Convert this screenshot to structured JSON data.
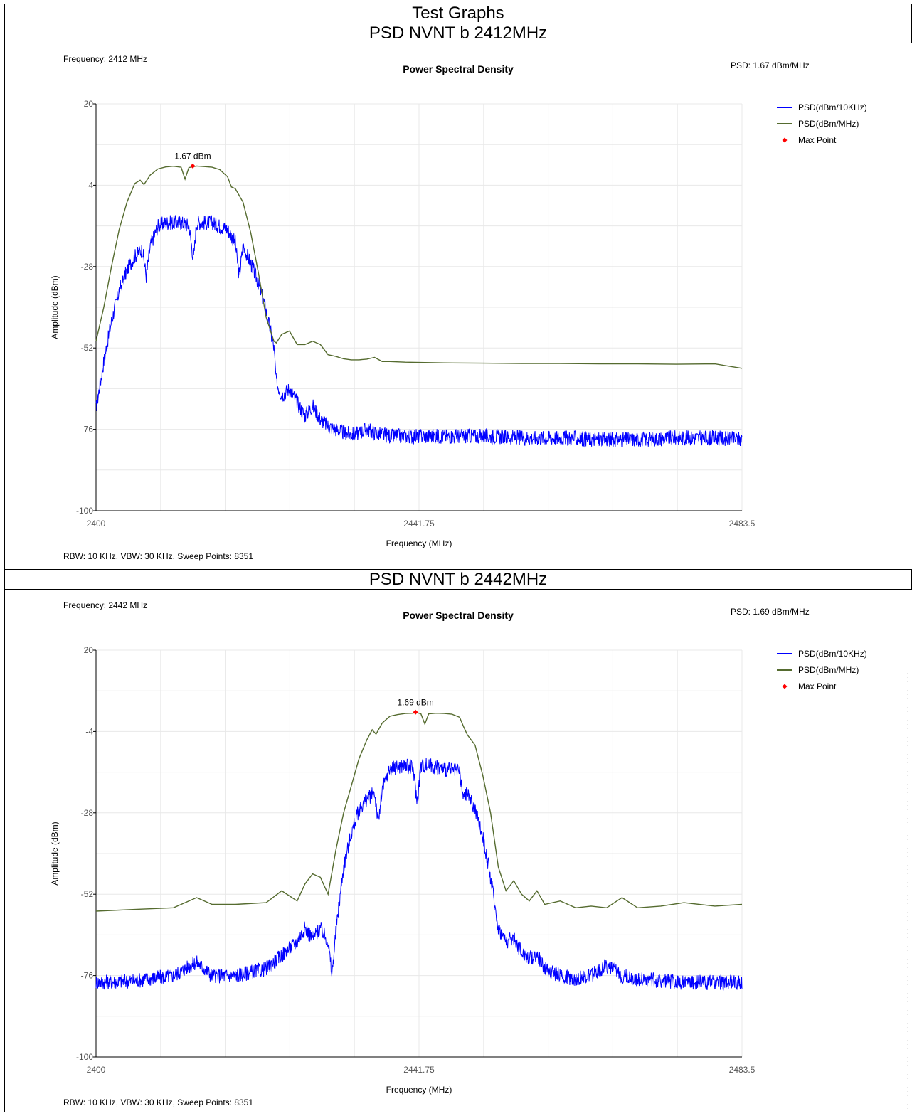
{
  "report_title": "Test Graphs",
  "graphs": [
    {
      "heading": "PSD NVNT b 2412MHz",
      "chart_title": "Power Spectral Density",
      "frequency_label": "Frequency: 2412 MHz",
      "psd_label": "PSD: 1.67 dBm/MHz",
      "footer": "RBW: 10 KHz,  VBW: 30 KHz,  Sweep Points: 8351",
      "max_label": "1.67 dBm"
    },
    {
      "heading": "PSD NVNT b 2442MHz",
      "chart_title": "Power Spectral Density",
      "frequency_label": "Frequency: 2442 MHz",
      "psd_label": "PSD: 1.69 dBm/MHz",
      "footer": "RBW: 10 KHz,  VBW: 30 KHz,  Sweep Points: 8351",
      "max_label": "1.69 dBm"
    }
  ],
  "colors": {
    "psd_10khz": "#0000ff",
    "psd_mhz": "#556b2f",
    "max_point": "#ff0000",
    "grid": "#e8e8e8"
  },
  "chart_data": [
    {
      "type": "line",
      "title": "Power Spectral Density",
      "xlabel": "Frequency (MHz)",
      "ylabel": "Amplitude (dBm)",
      "xlim": [
        2400,
        2483.5
      ],
      "ylim": [
        -100,
        20
      ],
      "x_ticks": [
        "2400",
        "2441.75",
        "2483.5"
      ],
      "y_ticks": [
        "20",
        "-4",
        "-28",
        "-52",
        "-76",
        "-100"
      ],
      "legend": [
        "PSD(dBm/10KHz)",
        "PSD(dBm/MHz)",
        "Max Point"
      ],
      "legend_position": "top-right",
      "grid": true,
      "max_point": {
        "x": 2412.5,
        "y": 1.67,
        "label": "1.67 dBm"
      },
      "series": [
        {
          "name": "PSD(dBm/MHz)",
          "x": [
            2400,
            2401,
            2402,
            2403,
            2404,
            2405,
            2405.7,
            2406.2,
            2407,
            2408,
            2409,
            2410,
            2411,
            2411.5,
            2412,
            2413,
            2414,
            2415,
            2416,
            2417,
            2417.5,
            2418,
            2419,
            2420,
            2421,
            2422,
            2423,
            2423.3,
            2424,
            2425,
            2426,
            2427,
            2428,
            2429,
            2430,
            2431,
            2432,
            2433,
            2434,
            2435,
            2436,
            2437,
            2438,
            2440,
            2445,
            2450,
            2455,
            2460,
            2465,
            2470,
            2475,
            2480,
            2483.5
          ],
          "y": [
            -50,
            -40,
            -28,
            -17,
            -9,
            -3.5,
            -2.5,
            -3.8,
            -1,
            0.8,
            1.4,
            1.6,
            1.3,
            -2.2,
            1.2,
            1.67,
            1.5,
            1.3,
            0.6,
            -1.5,
            -4.5,
            -5,
            -9,
            -18,
            -30,
            -43,
            -50,
            -50.5,
            -48,
            -47,
            -51,
            -51,
            -50,
            -51,
            -54,
            -54.5,
            -55.2,
            -55.5,
            -55.5,
            -55.3,
            -54.8,
            -56,
            -56,
            -56.2,
            -56.4,
            -56.5,
            -56.6,
            -56.6,
            -56.7,
            -56.7,
            -56.8,
            -56.7,
            -58
          ]
        },
        {
          "name": "PSD(dBm/10KHz)",
          "x": [
            2400,
            2401,
            2402,
            2403,
            2404,
            2405,
            2406,
            2406.5,
            2407,
            2408,
            2409,
            2410,
            2411,
            2412,
            2412.6,
            2413,
            2414,
            2415,
            2416,
            2417,
            2418,
            2418.5,
            2419,
            2420,
            2421,
            2422,
            2423,
            2423.3,
            2424,
            2425,
            2426,
            2427,
            2428,
            2429,
            2430,
            2431,
            2432,
            2433,
            2434,
            2435,
            2436,
            2438,
            2440,
            2445,
            2450,
            2455,
            2460,
            2465,
            2470,
            2475,
            2480,
            2483.5
          ],
          "y": [
            -70,
            -56,
            -44,
            -35,
            -29,
            -25,
            -23,
            -31,
            -22,
            -16,
            -15,
            -15,
            -15,
            -16,
            -26,
            -15,
            -15,
            -15,
            -16,
            -17,
            -21,
            -31,
            -22,
            -27,
            -33,
            -41,
            -52,
            -62,
            -66,
            -64,
            -68,
            -72,
            -69,
            -73,
            -75,
            -76,
            -77,
            -77.5,
            -77,
            -76,
            -77,
            -78,
            -78,
            -78,
            -78,
            -78.5,
            -78.5,
            -79,
            -79,
            -78.5,
            -78.5,
            -79
          ]
        }
      ]
    },
    {
      "type": "line",
      "title": "Power Spectral Density",
      "xlabel": "Frequency (MHz)",
      "ylabel": "Amplitude (dBm)",
      "xlim": [
        2400,
        2483.5
      ],
      "ylim": [
        -100,
        20
      ],
      "x_ticks": [
        "2400",
        "2441.75",
        "2483.5"
      ],
      "y_ticks": [
        "20",
        "-4",
        "-28",
        "-52",
        "-76",
        "-100"
      ],
      "legend": [
        "PSD(dBm/10KHz)",
        "PSD(dBm/MHz)",
        "Max Point"
      ],
      "legend_position": "top-right",
      "grid": true,
      "max_point": {
        "x": 2441.3,
        "y": 1.69,
        "label": "1.69 dBm"
      },
      "series": [
        {
          "name": "PSD(dBm/MHz)",
          "x": [
            2400,
            2405,
            2410,
            2413,
            2415,
            2418,
            2422,
            2424,
            2426,
            2427,
            2428,
            2429,
            2430,
            2431,
            2432,
            2433,
            2434,
            2435,
            2435.7,
            2436.2,
            2437,
            2438,
            2439,
            2440,
            2441,
            2441.3,
            2442,
            2442.5,
            2443,
            2444,
            2445,
            2446,
            2447,
            2447.5,
            2448,
            2449,
            2450,
            2451,
            2452,
            2453,
            2454,
            2455,
            2456,
            2457,
            2458,
            2460,
            2462,
            2464,
            2466,
            2468,
            2470,
            2473,
            2476,
            2480,
            2483.5
          ],
          "y": [
            -57,
            -56.5,
            -56,
            -53,
            -55,
            -55,
            -54.5,
            -51,
            -54,
            -49,
            -46,
            -47,
            -52,
            -39,
            -28,
            -20,
            -12,
            -6.5,
            -3.5,
            -4.8,
            -1.5,
            0.5,
            1,
            1.3,
            1.4,
            1.69,
            1.2,
            -1.8,
            1.2,
            1.4,
            1.3,
            1.1,
            0.2,
            -2.5,
            -5,
            -8,
            -17,
            -28,
            -44,
            -51,
            -48,
            -52,
            -54,
            -51,
            -55,
            -54,
            -56,
            -55.5,
            -56,
            -53,
            -56,
            -55.5,
            -54.5,
            -55.5,
            -55
          ]
        },
        {
          "name": "PSD(dBm/10KHz)",
          "x": [
            2400,
            2405,
            2410,
            2413,
            2415,
            2418,
            2422,
            2424,
            2426,
            2427,
            2428,
            2429,
            2430,
            2430.5,
            2431,
            2432,
            2433,
            2434,
            2435,
            2436,
            2436.5,
            2437,
            2438,
            2440,
            2441,
            2441.5,
            2442,
            2443,
            2445,
            2447,
            2447.5,
            2448,
            2449,
            2450,
            2451,
            2452,
            2453,
            2454,
            2455,
            2456,
            2457,
            2458,
            2460,
            2462,
            2464,
            2466,
            2468,
            2470,
            2473,
            2476,
            2480,
            2483.5
          ],
          "y": [
            -78,
            -77.5,
            -76,
            -72,
            -76,
            -76,
            -74,
            -70,
            -66,
            -62,
            -65,
            -62,
            -66,
            -76,
            -63,
            -44,
            -34,
            -27,
            -24,
            -22,
            -31,
            -21,
            -15,
            -14,
            -15,
            -25,
            -14,
            -14,
            -15,
            -16,
            -24,
            -22,
            -27,
            -35,
            -47,
            -62,
            -66,
            -65,
            -69,
            -71,
            -70,
            -74,
            -76,
            -77,
            -76,
            -73,
            -76,
            -77,
            -77.5,
            -78,
            -78,
            -78
          ]
        }
      ]
    }
  ]
}
